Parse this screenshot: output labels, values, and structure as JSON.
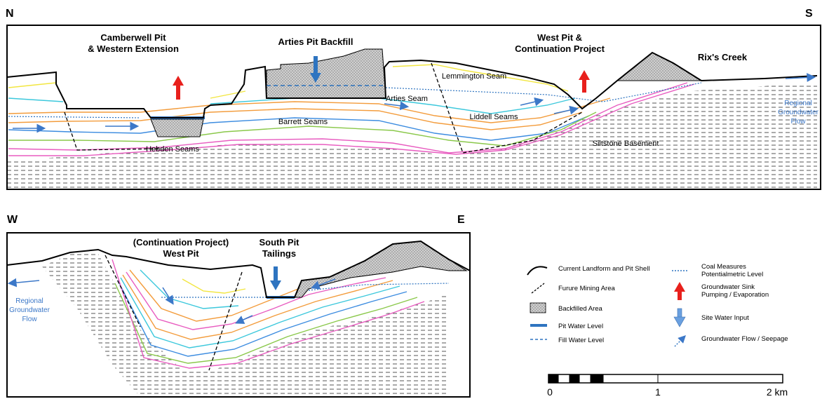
{
  "section_ns": {
    "north": "N",
    "south": "S",
    "camberwell_1": "Camberwell Pit",
    "camberwell_2": "& Western Extension",
    "arties_backfill": "Arties Pit Backfill",
    "west_pit_1": "West Pit &",
    "west_pit_2": "Continuation Project",
    "rixs_creek": "Rix's Creek",
    "lemmington": "Lemmington Seam",
    "arties_seam": "Arties Seam",
    "barrett": "Barrett Seams",
    "liddell": "Liddell Seams",
    "hebden": "Hebden Seams",
    "siltstone": "Siltstone Basement",
    "regional_flow_1": "Regional",
    "regional_flow_2": "Groundwater",
    "regional_flow_3": "Flow"
  },
  "section_we": {
    "west": "W",
    "east": "E",
    "continuation_1": "(Continuation Project)",
    "continuation_2": "West Pit",
    "south_pit_1": "South Pit",
    "south_pit_2": "Tailings",
    "regional_flow_1": "Regional",
    "regional_flow_2": "Groundwater",
    "regional_flow_3": "Flow"
  },
  "legend": {
    "landform": "Current Landform and Pit Shell",
    "future_mining": "Furure Mining Area",
    "backfilled": "Backfilled Area",
    "pit_water": "Pit Water Level",
    "fill_water": "Fill Water Level",
    "coal_measures_1": "Coal Measures",
    "coal_measures_2": "Potentialmetric Level",
    "gw_sink_1": "Groundwater Sink",
    "gw_sink_2": "Pumping / Evaporation",
    "site_water": "Site Water Input",
    "gw_flow": "Groundwater Flow / Seepage"
  },
  "scale_bar": {
    "tick_0": "0",
    "tick_1": "1",
    "tick_2": "2 km"
  },
  "colors": {
    "seam_yellow": "#f2e640",
    "seam_orange": "#f39c3c",
    "seam_cyan": "#3cc8dc",
    "seam_green": "#8ac84a",
    "seam_pink": "#e85cc0",
    "seam_blue": "#3c8ce0",
    "water_blue": "#2e74c0",
    "sink_red": "#e8201c",
    "input_blue": "#6aa0e0",
    "backfill_grey": "#cfcfcf",
    "flow_text": "#3c78c8"
  }
}
